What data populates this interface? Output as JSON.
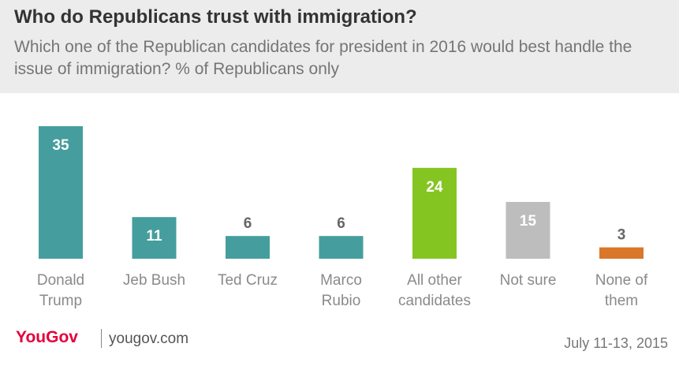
{
  "header": {
    "title": "Who do Republicans trust with immigration?",
    "subtitle": "Which one of the Republican candidates for president in 2016 would best handle the issue of immigration? % of Republicans only"
  },
  "chart_data": {
    "type": "bar",
    "title": "Who do Republicans trust with immigration?",
    "subtitle": "Which one of the Republican candidates for president in 2016 would best handle the issue of immigration? % of Republicans only",
    "categories": [
      [
        "Donald",
        "Trump"
      ],
      [
        "Jeb Bush"
      ],
      [
        "Ted Cruz"
      ],
      [
        "Marco",
        "Rubio"
      ],
      [
        "All other",
        "candidates"
      ],
      [
        "Not sure"
      ],
      [
        "None of",
        "them"
      ]
    ],
    "values": [
      35,
      11,
      6,
      6,
      24,
      15,
      3
    ],
    "colors": [
      "#459e9d",
      "#459e9d",
      "#459e9d",
      "#459e9d",
      "#84c522",
      "#bdbdbd",
      "#d9772a"
    ],
    "ylim": [
      0,
      35
    ],
    "grid": false,
    "legend": "none"
  },
  "footer": {
    "logo_text": "YouGov",
    "site": "yougov.com",
    "date": "July 11-13, 2015"
  }
}
